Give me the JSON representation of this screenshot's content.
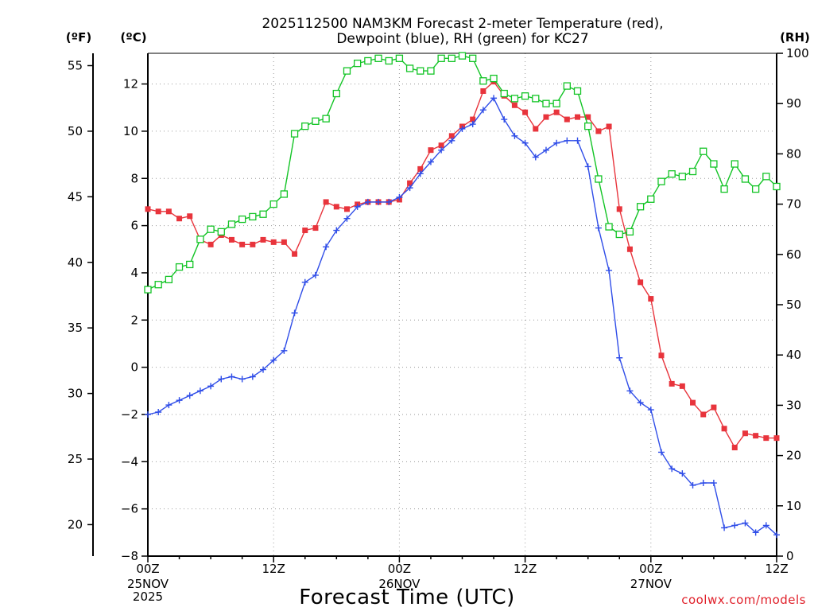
{
  "chart_data": {
    "type": "line",
    "title_lines": [
      "2025112500 NAM3KM Forecast 2-meter Temperature (red),",
      "Dewpoint (blue), RH (green) for KC27"
    ],
    "unit_labels": {
      "fahrenheit": "(ºF)",
      "celsius": "(ºC)",
      "rh": "(RH)"
    },
    "xlabel": "Forecast Time (UTC)",
    "credit": "coolwx.com/models",
    "x_unit": "forecast hour",
    "xlim": [
      0,
      60
    ],
    "x_ticks": [
      {
        "x": 0,
        "label": "00Z",
        "sub": [
          "25NOV",
          "2025"
        ]
      },
      {
        "x": 12,
        "label": "12Z",
        "sub": []
      },
      {
        "x": 24,
        "label": "00Z",
        "sub": [
          "26NOV"
        ]
      },
      {
        "x": 36,
        "label": "12Z",
        "sub": []
      },
      {
        "x": 48,
        "label": "00Z",
        "sub": [
          "27NOV"
        ]
      },
      {
        "x": 60,
        "label": "12Z",
        "sub": []
      }
    ],
    "ylim_celsius": [
      -8,
      13.3
    ],
    "ylim_rh": [
      0,
      100
    ],
    "ticks_celsius": [
      -8,
      -6,
      -4,
      -2,
      0,
      2,
      4,
      6,
      8,
      10,
      12
    ],
    "ticks_celsius_labels": [
      "−8",
      "−6",
      "−4",
      "−2",
      "0",
      "2",
      "4",
      "6",
      "8",
      "10",
      "12"
    ],
    "ticks_fahrenheit": [
      20,
      25,
      30,
      35,
      40,
      45,
      50,
      55
    ],
    "ticks_fahrenheit_labels": [
      "20",
      "25",
      "30",
      "35",
      "40",
      "45",
      "50",
      "55"
    ],
    "ticks_rh": [
      0,
      10,
      20,
      30,
      40,
      50,
      60,
      70,
      80,
      90,
      100
    ],
    "ticks_rh_labels": [
      "0",
      "10",
      "20",
      "30",
      "40",
      "50",
      "60",
      "70",
      "80",
      "90",
      "100"
    ],
    "grid": true,
    "series": [
      {
        "name": "2-meter Temperature",
        "axis": "celsius",
        "color": "#e8343c",
        "marker": "filled-square",
        "x": [
          0,
          1,
          2,
          3,
          4,
          5,
          6,
          7,
          8,
          9,
          10,
          11,
          12,
          13,
          14,
          15,
          16,
          17,
          18,
          19,
          20,
          21,
          22,
          23,
          24,
          25,
          26,
          27,
          28,
          29,
          30,
          31,
          32,
          33,
          34,
          35,
          36,
          37,
          38,
          39,
          40,
          41,
          42,
          43,
          44,
          45,
          46,
          47,
          48,
          49,
          50,
          51,
          52,
          53,
          54,
          55,
          56,
          57,
          58,
          59,
          60
        ],
        "values": [
          6.7,
          6.6,
          6.6,
          6.3,
          6.4,
          5.4,
          5.2,
          5.6,
          5.4,
          5.2,
          5.2,
          5.4,
          5.3,
          5.3,
          4.8,
          5.8,
          5.9,
          7.0,
          6.8,
          6.7,
          6.9,
          7.0,
          7.0,
          7.0,
          7.1,
          7.8,
          8.4,
          9.2,
          9.4,
          9.8,
          10.2,
          10.5,
          11.7,
          12.1,
          11.5,
          11.1,
          10.8,
          10.1,
          10.6,
          10.8,
          10.5,
          10.6,
          10.6,
          10.0,
          10.2,
          6.7,
          5.0,
          3.6,
          2.9,
          0.5,
          -0.7,
          -0.8,
          -1.5,
          -2.0,
          -1.7,
          -2.6,
          -3.4,
          -2.8,
          -2.9,
          -3.0,
          -3.0
        ]
      },
      {
        "name": "Dewpoint",
        "axis": "celsius",
        "color": "#2f4de8",
        "marker": "plus",
        "x": [
          0,
          1,
          2,
          3,
          4,
          5,
          6,
          7,
          8,
          9,
          10,
          11,
          12,
          13,
          14,
          15,
          16,
          17,
          18,
          19,
          20,
          21,
          22,
          23,
          24,
          25,
          26,
          27,
          28,
          29,
          30,
          31,
          32,
          33,
          34,
          35,
          36,
          37,
          38,
          39,
          40,
          41,
          42,
          43,
          44,
          45,
          46,
          47,
          48,
          49,
          50,
          51,
          52,
          53,
          54,
          55,
          56,
          57,
          58,
          59,
          60
        ],
        "values": [
          -2.0,
          -1.9,
          -1.6,
          -1.4,
          -1.2,
          -1.0,
          -0.8,
          -0.5,
          -0.4,
          -0.5,
          -0.4,
          -0.1,
          0.3,
          0.7,
          2.3,
          3.6,
          3.9,
          5.1,
          5.8,
          6.3,
          6.8,
          7.0,
          7.0,
          7.0,
          7.2,
          7.6,
          8.2,
          8.7,
          9.2,
          9.6,
          10.1,
          10.3,
          10.9,
          11.4,
          10.5,
          9.8,
          9.5,
          8.9,
          9.2,
          9.5,
          9.6,
          9.6,
          8.5,
          5.9,
          4.1,
          0.4,
          -1.0,
          -1.5,
          -1.8,
          -3.6,
          -4.3,
          -4.5,
          -5.0,
          -4.9,
          -4.9,
          -6.8,
          -6.7,
          -6.6,
          -7.0,
          -6.7,
          -7.1
        ]
      },
      {
        "name": "RH",
        "axis": "rh",
        "color": "#12c425",
        "marker": "open-square",
        "x": [
          0,
          1,
          2,
          3,
          4,
          5,
          6,
          7,
          8,
          9,
          10,
          11,
          12,
          13,
          14,
          15,
          16,
          17,
          18,
          19,
          20,
          21,
          22,
          23,
          24,
          25,
          26,
          27,
          28,
          29,
          30,
          31,
          32,
          33,
          34,
          35,
          36,
          37,
          38,
          39,
          40,
          41,
          42,
          43,
          44,
          45,
          46,
          47,
          48,
          49,
          50,
          51,
          52,
          53,
          54,
          55,
          56,
          57,
          58,
          59,
          60
        ],
        "values": [
          53,
          54,
          55,
          57.5,
          58,
          63,
          65,
          64.5,
          66,
          67,
          67.5,
          68,
          70,
          72,
          84,
          85.5,
          86.5,
          87,
          92,
          96.5,
          98,
          98.5,
          99,
          98.5,
          99,
          97,
          96.5,
          96.5,
          99,
          99,
          99.5,
          99,
          94.5,
          95,
          92,
          91,
          91.5,
          91,
          90,
          90,
          93.5,
          92.5,
          85.5,
          75,
          65.5,
          64,
          64.5,
          69.5,
          71,
          74.5,
          76,
          75.5,
          76.5,
          80.5,
          78,
          73,
          78,
          75,
          73,
          75.5,
          73.5
        ]
      }
    ]
  }
}
